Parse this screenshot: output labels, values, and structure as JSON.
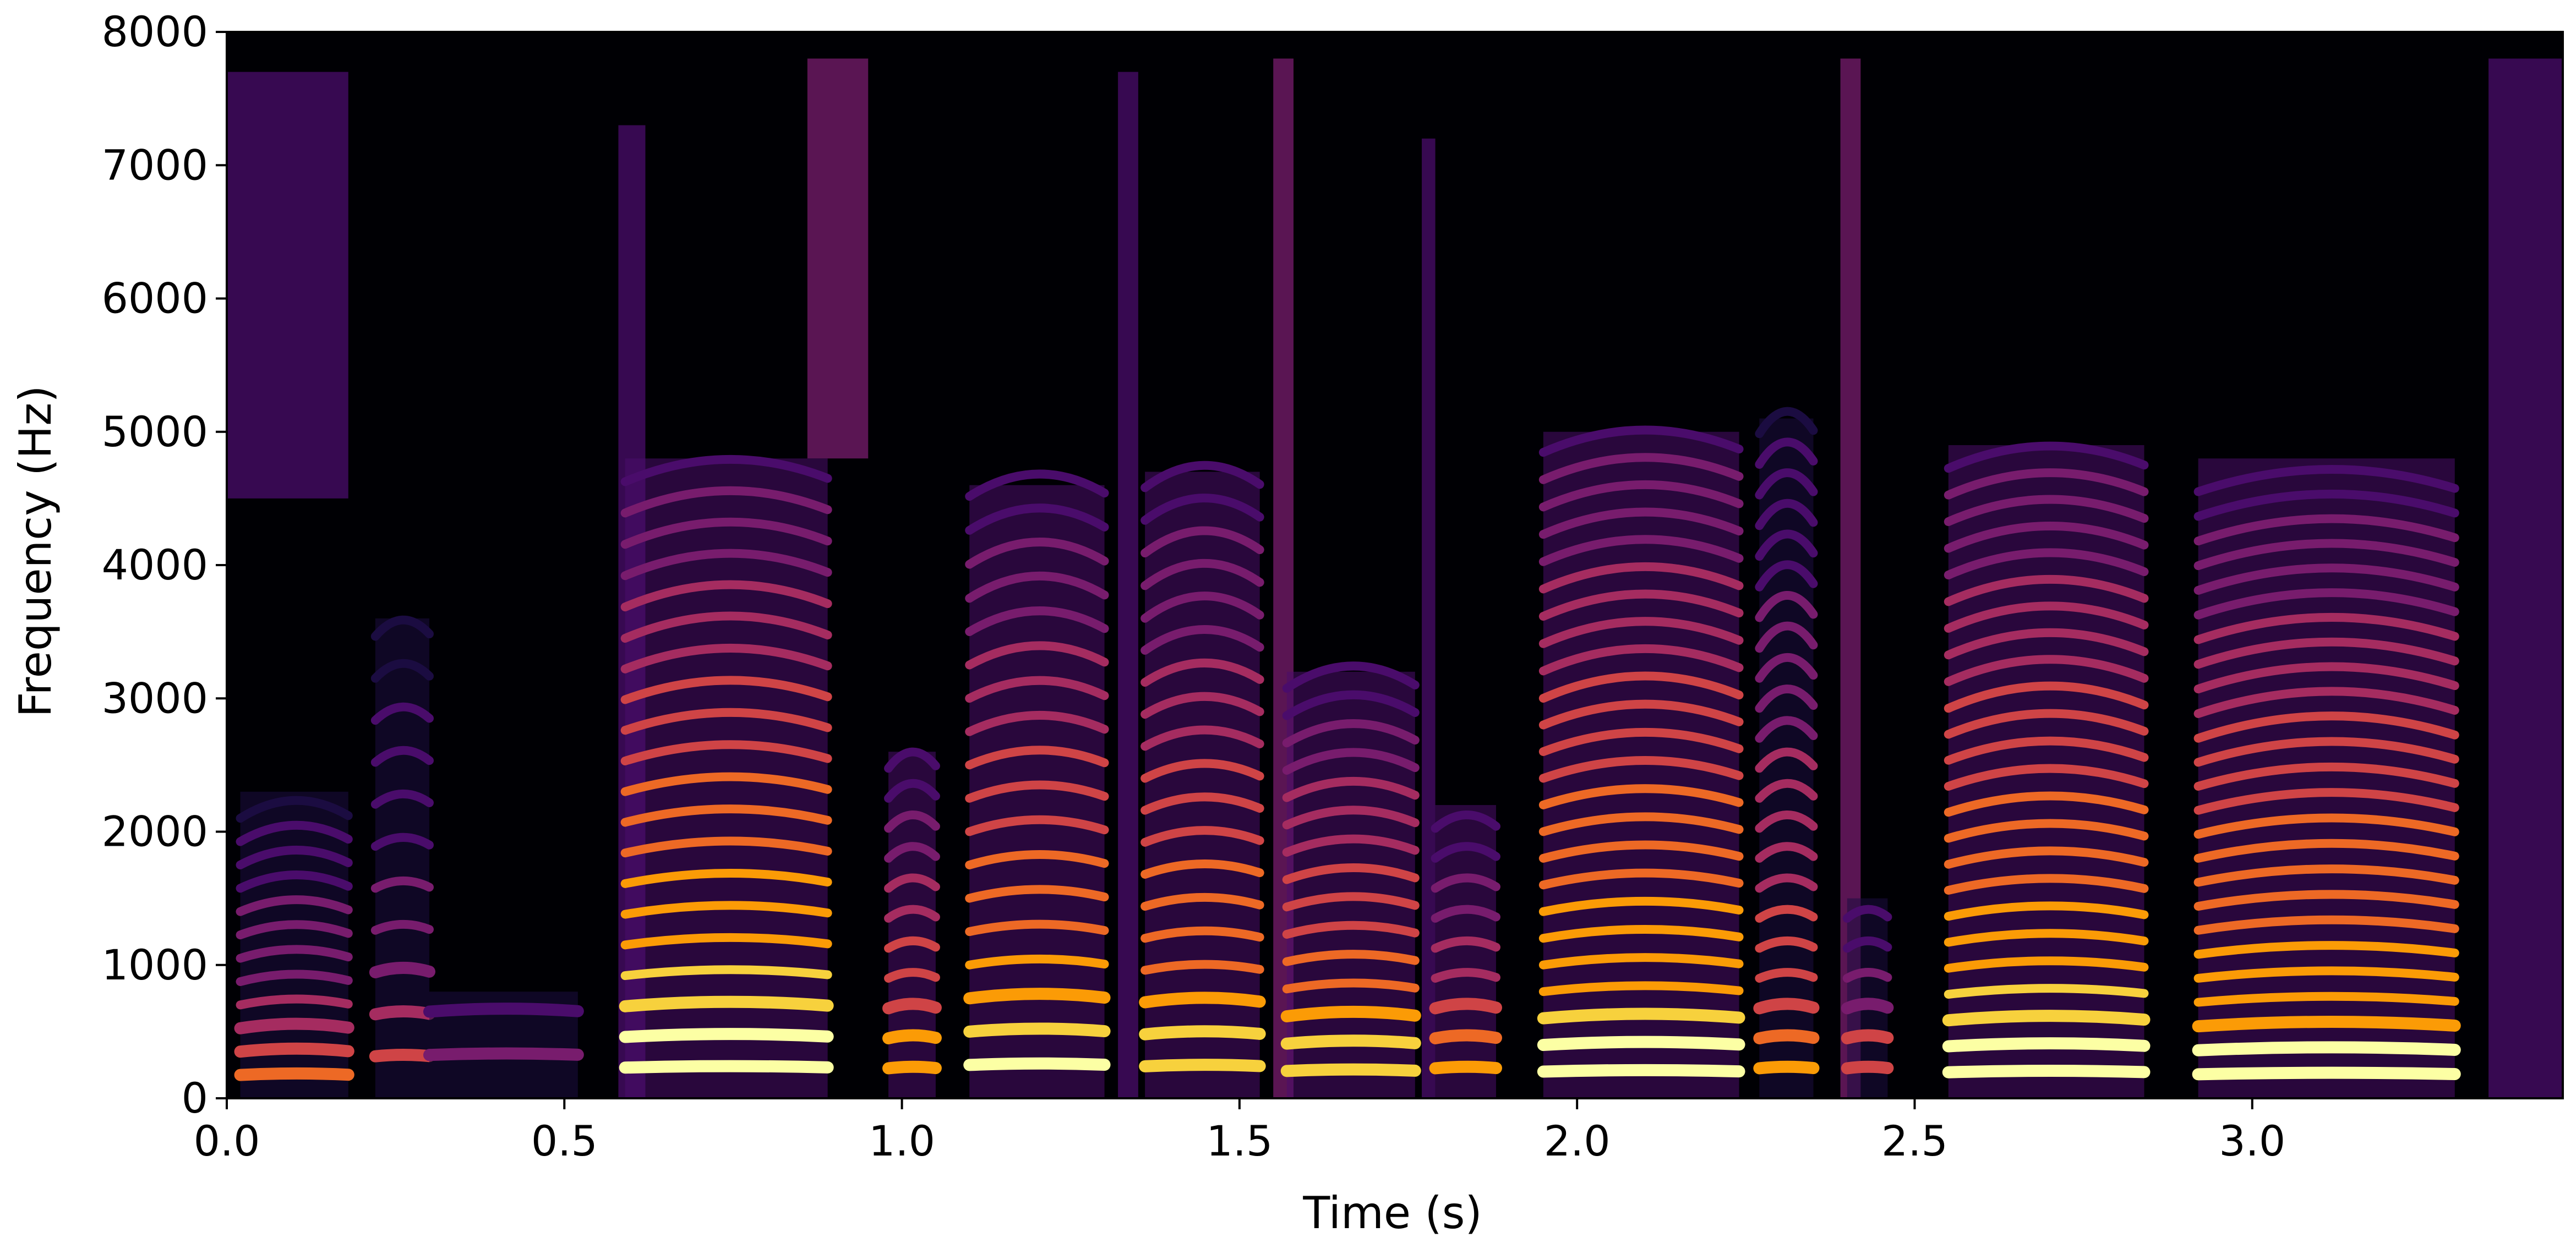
{
  "chart_data": {
    "type": "heatmap",
    "title": "",
    "xlabel": "Time (s)",
    "ylabel": "Frequency (Hz)",
    "xlim": [
      0.0,
      3.46
    ],
    "ylim": [
      0,
      8000
    ],
    "x_ticks": [
      {
        "value": 0.0,
        "label": "0.0"
      },
      {
        "value": 0.5,
        "label": "0.5"
      },
      {
        "value": 1.0,
        "label": "1.0"
      },
      {
        "value": 1.5,
        "label": "1.5"
      },
      {
        "value": 2.0,
        "label": "2.0"
      },
      {
        "value": 2.5,
        "label": "2.5"
      },
      {
        "value": 3.0,
        "label": "3.0"
      }
    ],
    "y_ticks": [
      {
        "value": 0,
        "label": "0"
      },
      {
        "value": 1000,
        "label": "1000"
      },
      {
        "value": 2000,
        "label": "2000"
      },
      {
        "value": 3000,
        "label": "3000"
      },
      {
        "value": 4000,
        "label": "4000"
      },
      {
        "value": 5000,
        "label": "5000"
      },
      {
        "value": 6000,
        "label": "6000"
      },
      {
        "value": 7000,
        "label": "7000"
      },
      {
        "value": 8000,
        "label": "8000"
      }
    ],
    "colormap": [
      "#000004",
      "#1b0c41",
      "#4a0c6b",
      "#781c6d",
      "#a52c60",
      "#cf4446",
      "#ed6925",
      "#fb9b06",
      "#f7d13d",
      "#fcffa4"
    ],
    "background_color": "#000004",
    "grid": false,
    "voiced_segments": [
      {
        "start": 0.02,
        "end": 0.18,
        "f0": 180,
        "max_freq": 2300,
        "intensity": 0.55
      },
      {
        "start": 0.22,
        "end": 0.3,
        "f0": 320,
        "max_freq": 3600,
        "intensity": 0.45
      },
      {
        "start": 0.3,
        "end": 0.52,
        "f0": 330,
        "max_freq": 800,
        "intensity": 0.35
      },
      {
        "start": 0.59,
        "end": 0.89,
        "f0": 235,
        "max_freq": 4800,
        "intensity": 1.0
      },
      {
        "start": 0.98,
        "end": 1.05,
        "f0": 230,
        "max_freq": 2600,
        "intensity": 0.75
      },
      {
        "start": 1.1,
        "end": 1.3,
        "f0": 255,
        "max_freq": 4600,
        "intensity": 0.9
      },
      {
        "start": 1.36,
        "end": 1.53,
        "f0": 245,
        "max_freq": 4700,
        "intensity": 0.85
      },
      {
        "start": 1.57,
        "end": 1.76,
        "f0": 210,
        "max_freq": 3200,
        "intensity": 0.85
      },
      {
        "start": 1.79,
        "end": 1.88,
        "f0": 230,
        "max_freq": 2200,
        "intensity": 0.7
      },
      {
        "start": 1.95,
        "end": 2.24,
        "f0": 205,
        "max_freq": 5000,
        "intensity": 0.95
      },
      {
        "start": 2.27,
        "end": 2.35,
        "f0": 230,
        "max_freq": 5100,
        "intensity": 0.65
      },
      {
        "start": 2.4,
        "end": 2.46,
        "f0": 230,
        "max_freq": 1500,
        "intensity": 0.55
      },
      {
        "start": 2.55,
        "end": 2.84,
        "f0": 200,
        "max_freq": 4900,
        "intensity": 0.95
      },
      {
        "start": 2.92,
        "end": 3.3,
        "f0": 185,
        "max_freq": 4800,
        "intensity": 0.9
      }
    ],
    "noise_segments": [
      {
        "start": 0.0,
        "end": 0.18,
        "low": 4500,
        "high": 7700,
        "intensity": 0.45
      },
      {
        "start": 0.58,
        "end": 0.62,
        "low": 0,
        "high": 7300,
        "intensity": 0.5
      },
      {
        "start": 0.86,
        "end": 0.95,
        "low": 4800,
        "high": 7800,
        "intensity": 0.55
      },
      {
        "start": 1.32,
        "end": 1.35,
        "low": 0,
        "high": 7700,
        "intensity": 0.5
      },
      {
        "start": 1.55,
        "end": 1.58,
        "low": 0,
        "high": 7800,
        "intensity": 0.55
      },
      {
        "start": 1.77,
        "end": 1.79,
        "low": 0,
        "high": 7200,
        "intensity": 0.5
      },
      {
        "start": 2.39,
        "end": 2.42,
        "low": 0,
        "high": 7800,
        "intensity": 0.55
      },
      {
        "start": 3.35,
        "end": 3.46,
        "low": 0,
        "high": 7800,
        "intensity": 0.45
      }
    ]
  }
}
